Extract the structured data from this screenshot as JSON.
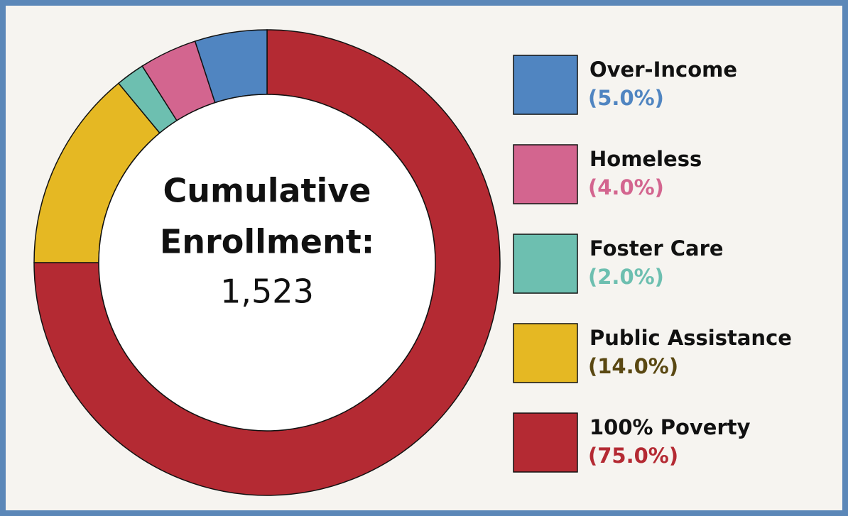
{
  "chart_data": {
    "type": "donut",
    "categories": [
      "Over-Income",
      "Homeless",
      "Foster Care",
      "Public Assistance",
      "100% Poverty"
    ],
    "values": [
      5.0,
      4.0,
      2.0,
      14.0,
      75.0
    ],
    "value_labels": [
      "(5.0%)",
      "(4.0%)",
      "(2.0%)",
      "(14.0%)",
      "(75.0%)"
    ],
    "colors": [
      "#5085c1",
      "#d3658f",
      "#6dbfb0",
      "#e5b823",
      "#b42a33"
    ],
    "value_label_colors": [
      "#5085c1",
      "#d3658f",
      "#6dbfb0",
      "#5a4812",
      "#b42a33"
    ],
    "center_text": [
      "Cumulative",
      "Enrollment:"
    ],
    "center_value_label": "1,523"
  }
}
